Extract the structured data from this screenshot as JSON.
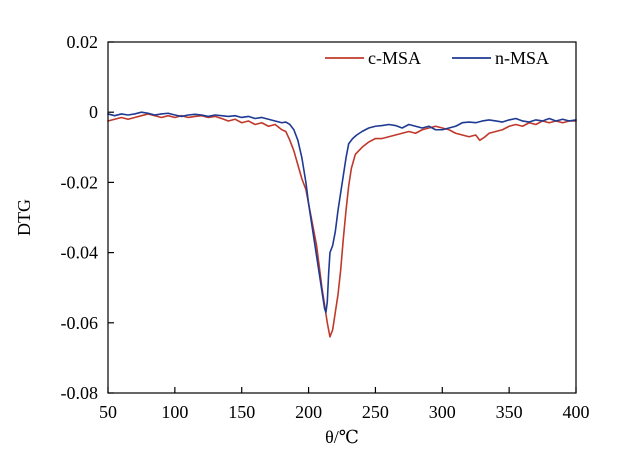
{
  "chart_data": {
    "type": "line",
    "xlabel": "θ/℃",
    "ylabel": "DTG",
    "xlim": [
      50,
      400
    ],
    "ylim": [
      -0.08,
      0.02
    ],
    "xticks": [
      50,
      100,
      150,
      200,
      250,
      300,
      350,
      400
    ],
    "yticks": [
      0.02,
      0,
      -0.02,
      -0.04,
      -0.06,
      -0.08
    ],
    "ytick_labels": [
      "0.02",
      "0",
      "-0.02",
      "-0.04",
      "-0.06",
      "-0.08"
    ],
    "grid": false,
    "legend": {
      "placement": "top-right",
      "entries": [
        "c-MSA",
        "n-MSA"
      ]
    },
    "series": [
      {
        "name": "c-MSA",
        "color": "#c0392b",
        "points": [
          [
            50,
            -0.0025
          ],
          [
            55,
            -0.002
          ],
          [
            60,
            -0.0015
          ],
          [
            65,
            -0.002
          ],
          [
            70,
            -0.0015
          ],
          [
            75,
            -0.001
          ],
          [
            80,
            -0.0005
          ],
          [
            85,
            -0.001
          ],
          [
            90,
            -0.0015
          ],
          [
            95,
            -0.001
          ],
          [
            100,
            -0.0015
          ],
          [
            105,
            -0.001
          ],
          [
            110,
            -0.0015
          ],
          [
            115,
            -0.0012
          ],
          [
            120,
            -0.001
          ],
          [
            125,
            -0.0015
          ],
          [
            130,
            -0.0012
          ],
          [
            135,
            -0.0018
          ],
          [
            140,
            -0.0025
          ],
          [
            145,
            -0.002
          ],
          [
            150,
            -0.003
          ],
          [
            155,
            -0.0025
          ],
          [
            160,
            -0.0035
          ],
          [
            165,
            -0.003
          ],
          [
            170,
            -0.004
          ],
          [
            175,
            -0.0035
          ],
          [
            180,
            -0.005
          ],
          [
            183,
            -0.0055
          ],
          [
            186,
            -0.008
          ],
          [
            189,
            -0.011
          ],
          [
            192,
            -0.015
          ],
          [
            195,
            -0.019
          ],
          [
            198,
            -0.022
          ],
          [
            200,
            -0.026
          ],
          [
            203,
            -0.032
          ],
          [
            206,
            -0.038
          ],
          [
            208,
            -0.044
          ],
          [
            210,
            -0.05
          ],
          [
            212,
            -0.055
          ],
          [
            214,
            -0.06
          ],
          [
            216,
            -0.064
          ],
          [
            218,
            -0.062
          ],
          [
            220,
            -0.057
          ],
          [
            222,
            -0.052
          ],
          [
            224,
            -0.045
          ],
          [
            226,
            -0.036
          ],
          [
            228,
            -0.028
          ],
          [
            230,
            -0.021
          ],
          [
            232,
            -0.016
          ],
          [
            235,
            -0.012
          ],
          [
            240,
            -0.01
          ],
          [
            245,
            -0.0085
          ],
          [
            250,
            -0.0075
          ],
          [
            255,
            -0.0075
          ],
          [
            260,
            -0.007
          ],
          [
            265,
            -0.0065
          ],
          [
            270,
            -0.006
          ],
          [
            275,
            -0.0055
          ],
          [
            280,
            -0.006
          ],
          [
            285,
            -0.005
          ],
          [
            290,
            -0.0045
          ],
          [
            295,
            -0.004
          ],
          [
            300,
            -0.0045
          ],
          [
            305,
            -0.005
          ],
          [
            310,
            -0.006
          ],
          [
            315,
            -0.0065
          ],
          [
            320,
            -0.007
          ],
          [
            325,
            -0.0065
          ],
          [
            328,
            -0.008
          ],
          [
            332,
            -0.007
          ],
          [
            335,
            -0.006
          ],
          [
            340,
            -0.0055
          ],
          [
            345,
            -0.005
          ],
          [
            350,
            -0.004
          ],
          [
            355,
            -0.0035
          ],
          [
            360,
            -0.004
          ],
          [
            365,
            -0.003
          ],
          [
            370,
            -0.0035
          ],
          [
            375,
            -0.0025
          ],
          [
            380,
            -0.003
          ],
          [
            385,
            -0.0025
          ],
          [
            390,
            -0.003
          ],
          [
            395,
            -0.0025
          ],
          [
            400,
            -0.0025
          ]
        ]
      },
      {
        "name": "n-MSA",
        "color": "#1f3a93",
        "points": [
          [
            50,
            -0.0005
          ],
          [
            55,
            -0.001
          ],
          [
            60,
            -0.0005
          ],
          [
            65,
            -0.0008
          ],
          [
            70,
            -0.0005
          ],
          [
            75,
            0.0
          ],
          [
            80,
            -0.0003
          ],
          [
            85,
            -0.0008
          ],
          [
            90,
            -0.0005
          ],
          [
            95,
            -0.0003
          ],
          [
            100,
            -0.0008
          ],
          [
            105,
            -0.0012
          ],
          [
            110,
            -0.0008
          ],
          [
            115,
            -0.0006
          ],
          [
            120,
            -0.0008
          ],
          [
            125,
            -0.0012
          ],
          [
            130,
            -0.0008
          ],
          [
            135,
            -0.001
          ],
          [
            140,
            -0.0012
          ],
          [
            145,
            -0.001
          ],
          [
            150,
            -0.0015
          ],
          [
            155,
            -0.0012
          ],
          [
            160,
            -0.0018
          ],
          [
            165,
            -0.0015
          ],
          [
            170,
            -0.002
          ],
          [
            175,
            -0.0025
          ],
          [
            180,
            -0.003
          ],
          [
            183,
            -0.0028
          ],
          [
            186,
            -0.0035
          ],
          [
            189,
            -0.005
          ],
          [
            192,
            -0.008
          ],
          [
            195,
            -0.013
          ],
          [
            198,
            -0.02
          ],
          [
            200,
            -0.026
          ],
          [
            202,
            -0.031
          ],
          [
            204,
            -0.036
          ],
          [
            206,
            -0.041
          ],
          [
            208,
            -0.046
          ],
          [
            210,
            -0.051
          ],
          [
            212,
            -0.056
          ],
          [
            213,
            -0.057
          ],
          [
            214,
            -0.054
          ],
          [
            215,
            -0.046
          ],
          [
            216,
            -0.04
          ],
          [
            218,
            -0.038
          ],
          [
            220,
            -0.034
          ],
          [
            222,
            -0.028
          ],
          [
            224,
            -0.023
          ],
          [
            226,
            -0.018
          ],
          [
            228,
            -0.013
          ],
          [
            230,
            -0.009
          ],
          [
            233,
            -0.0075
          ],
          [
            236,
            -0.0065
          ],
          [
            240,
            -0.0055
          ],
          [
            245,
            -0.0045
          ],
          [
            250,
            -0.004
          ],
          [
            255,
            -0.0038
          ],
          [
            260,
            -0.0035
          ],
          [
            265,
            -0.0038
          ],
          [
            270,
            -0.0045
          ],
          [
            275,
            -0.0035
          ],
          [
            280,
            -0.004
          ],
          [
            285,
            -0.0045
          ],
          [
            290,
            -0.004
          ],
          [
            295,
            -0.005
          ],
          [
            300,
            -0.005
          ],
          [
            305,
            -0.0045
          ],
          [
            310,
            -0.004
          ],
          [
            315,
            -0.003
          ],
          [
            320,
            -0.0028
          ],
          [
            325,
            -0.003
          ],
          [
            330,
            -0.0025
          ],
          [
            335,
            -0.0022
          ],
          [
            340,
            -0.0025
          ],
          [
            345,
            -0.0028
          ],
          [
            350,
            -0.0022
          ],
          [
            355,
            -0.0018
          ],
          [
            360,
            -0.0025
          ],
          [
            365,
            -0.0028
          ],
          [
            370,
            -0.0022
          ],
          [
            375,
            -0.0025
          ],
          [
            380,
            -0.0018
          ],
          [
            385,
            -0.0025
          ],
          [
            390,
            -0.002
          ],
          [
            395,
            -0.0025
          ],
          [
            400,
            -0.0022
          ]
        ]
      }
    ]
  }
}
